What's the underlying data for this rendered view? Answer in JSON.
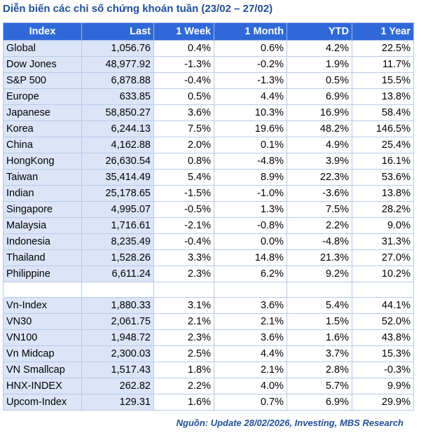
{
  "title": "Diễn biến các chỉ số chứng khoán tuần (23/02 – 27/02)",
  "headers": [
    "Index",
    "Last",
    "1 Week",
    "1 Month",
    "YTD",
    "1 Year"
  ],
  "global_rows": [
    {
      "name": "Global",
      "last": "1,056.76",
      "w1": "0.4%",
      "m1": "0.6%",
      "ytd": "4.2%",
      "y1": "22.5%"
    },
    {
      "name": "Dow Jones",
      "last": "48,977.92",
      "w1": "-1.3%",
      "m1": "-0.2%",
      "ytd": "1.9%",
      "y1": "11.7%"
    },
    {
      "name": "S&P 500",
      "last": "6,878.88",
      "w1": "-0.4%",
      "m1": "-1.3%",
      "ytd": "0.5%",
      "y1": "15.5%"
    },
    {
      "name": "Europe",
      "last": "633.85",
      "w1": "0.5%",
      "m1": "4.4%",
      "ytd": "6.9%",
      "y1": "13.8%"
    },
    {
      "name": "Japanese",
      "last": "58,850.27",
      "w1": "3.6%",
      "m1": "10.3%",
      "ytd": "16.9%",
      "y1": "58.4%"
    },
    {
      "name": "Korea",
      "last": "6,244.13",
      "w1": "7.5%",
      "m1": "19.6%",
      "ytd": "48.2%",
      "y1": "146.5%"
    },
    {
      "name": "China",
      "last": "4,162.88",
      "w1": "2.0%",
      "m1": "0.1%",
      "ytd": "4.9%",
      "y1": "25.4%"
    },
    {
      "name": "HongKong",
      "last": "26,630.54",
      "w1": "0.8%",
      "m1": "-4.8%",
      "ytd": "3.9%",
      "y1": "16.1%"
    },
    {
      "name": "Taiwan",
      "last": "35,414.49",
      "w1": "5.4%",
      "m1": "8.9%",
      "ytd": "22.3%",
      "y1": "53.6%"
    },
    {
      "name": "Indian",
      "last": "25,178.65",
      "w1": "-1.5%",
      "m1": "-1.0%",
      "ytd": "-3.6%",
      "y1": "13.8%"
    },
    {
      "name": "Singapore",
      "last": "4,995.07",
      "w1": "-0.5%",
      "m1": "1.3%",
      "ytd": "7.5%",
      "y1": "28.2%"
    },
    {
      "name": "Malaysia",
      "last": "1,716.61",
      "w1": "-2.1%",
      "m1": "-0.8%",
      "ytd": "2.2%",
      "y1": "9.0%"
    },
    {
      "name": "Indonesia",
      "last": "8,235.49",
      "w1": "-0.4%",
      "m1": "0.0%",
      "ytd": "-4.8%",
      "y1": "31.3%"
    },
    {
      "name": "Thailand",
      "last": "1,528.26",
      "w1": "3.3%",
      "m1": "14.8%",
      "ytd": "21.3%",
      "y1": "27.0%"
    },
    {
      "name": "Philippine",
      "last": "6,611.24",
      "w1": "2.3%",
      "m1": "6.2%",
      "ytd": "9.2%",
      "y1": "10.2%"
    }
  ],
  "vn_rows": [
    {
      "name": "Vn-Index",
      "last": "1,880.33",
      "w1": "3.1%",
      "m1": "3.6%",
      "ytd": "5.4%",
      "y1": "44.1%"
    },
    {
      "name": "VN30",
      "last": "2,061.75",
      "w1": "2.1%",
      "m1": "2.1%",
      "ytd": "1.5%",
      "y1": "52.0%"
    },
    {
      "name": "VN100",
      "last": "1,948.72",
      "w1": "2.3%",
      "m1": "3.6%",
      "ytd": "1.6%",
      "y1": "43.8%"
    },
    {
      "name": "Vn Midcap",
      "last": "2,300.03",
      "w1": "2.5%",
      "m1": "4.4%",
      "ytd": "3.7%",
      "y1": "15.3%"
    },
    {
      "name": "VN Smallcap",
      "last": "1,517.43",
      "w1": "1.8%",
      "m1": "2.1%",
      "ytd": "2.8%",
      "y1": "-0.3%"
    },
    {
      "name": "HNX-INDEX",
      "last": "262.82",
      "w1": "2.2%",
      "m1": "4.0%",
      "ytd": "5.7%",
      "y1": "9.9%"
    },
    {
      "name": "Upcom-Index",
      "last": "129.31",
      "w1": "1.6%",
      "m1": "0.7%",
      "ytd": "6.9%",
      "y1": "29.9%"
    }
  ],
  "source": "Nguồn: Update  28/02/2026, Investing, MBS Research",
  "colors": {
    "header_bg": "#2f69d8",
    "title": "#1f4e9b",
    "positive": "#1f9a3a",
    "negative": "#e3191f",
    "shade": "#dbe5f7"
  }
}
